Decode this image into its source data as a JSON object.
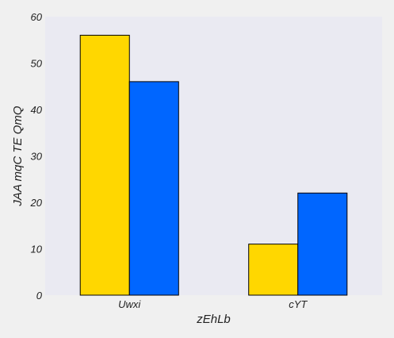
{
  "chart_data": {
    "type": "bar",
    "title": "",
    "xlabel": "zEhLb",
    "ylabel": "JAA mqC TE QmQ",
    "categories": [
      "Uwxi",
      "cYT"
    ],
    "series": [
      {
        "values": [
          56,
          11
        ],
        "color": "#ffd700"
      },
      {
        "values": [
          46,
          22
        ],
        "color": "#0066ff"
      }
    ],
    "ylim": [
      0,
      60
    ],
    "yticks": [
      0,
      10,
      20,
      30,
      40,
      50,
      60
    ],
    "grid": false,
    "legend": "none",
    "plot_background": "#eaeaf2"
  }
}
